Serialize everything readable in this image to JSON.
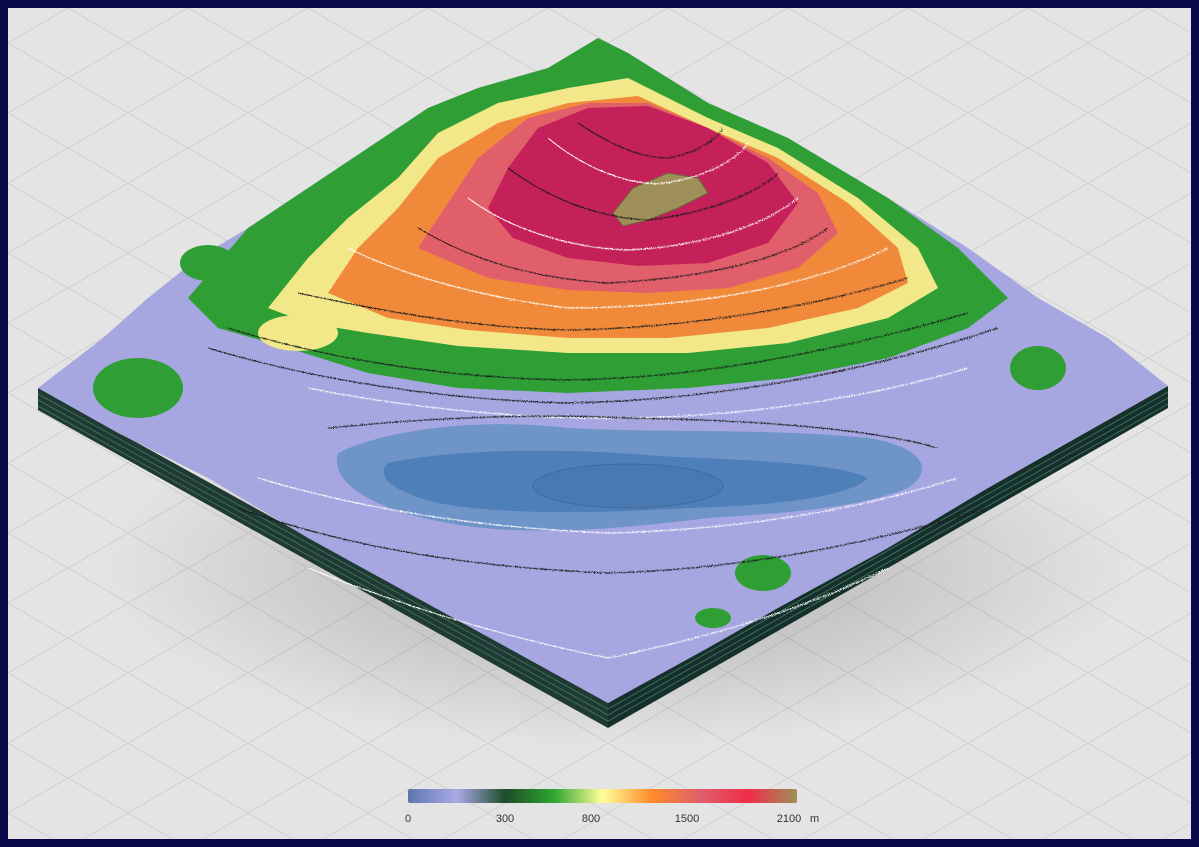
{
  "map": {
    "legend": {
      "unit": "m",
      "ticks": [
        {
          "label": "0",
          "value": 0
        },
        {
          "label": "300",
          "value": 300
        },
        {
          "label": "800",
          "value": 800
        },
        {
          "label": "1500",
          "value": 1500
        },
        {
          "label": "2100",
          "value": 2100
        }
      ],
      "color_stops": [
        "#5b77ae",
        "#a9a9e6",
        "#1f4d2a",
        "#2fa52f",
        "#ffff99",
        "#ff8c2c",
        "#e05f6a",
        "#f02c4a",
        "#9e9058"
      ]
    },
    "colors": {
      "background": "#e4e4e4",
      "border": "#0a0a4a",
      "base_slab": "#1e3a33",
      "lake": "#4f7fb8",
      "lowland": "#a6a6e0",
      "forest": "#2f9e35",
      "meadow": "#f2e88a",
      "slope": "#f08a3a",
      "upper_slope": "#d94a6a",
      "summit": "#c4205a",
      "peak_rock": "#9e9058"
    }
  }
}
